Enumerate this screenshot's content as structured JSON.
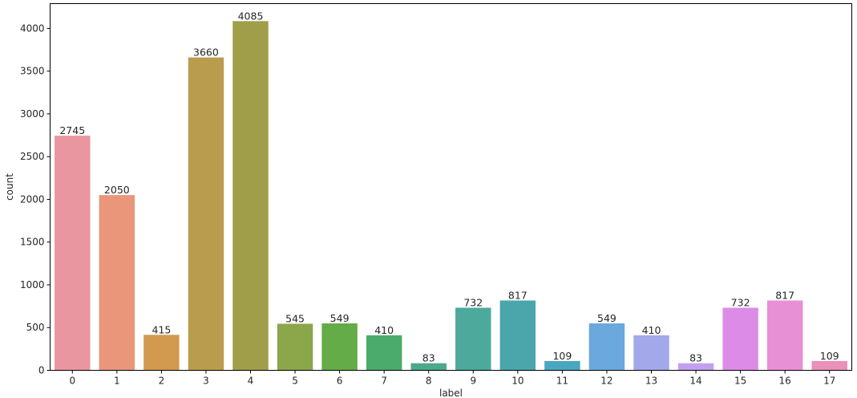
{
  "chart_data": {
    "type": "bar",
    "xlabel": "label",
    "ylabel": "count",
    "categories": [
      "0",
      "1",
      "2",
      "3",
      "4",
      "5",
      "6",
      "7",
      "8",
      "9",
      "10",
      "11",
      "12",
      "13",
      "14",
      "15",
      "16",
      "17"
    ],
    "values": [
      2745,
      2050,
      415,
      3660,
      4085,
      545,
      549,
      410,
      83,
      732,
      817,
      109,
      549,
      410,
      83,
      732,
      817,
      109
    ],
    "ylim": [
      0,
      4290
    ],
    "yticks": [
      0,
      500,
      1000,
      1500,
      2000,
      2500,
      3000,
      3500,
      4000
    ],
    "grid": false,
    "legend": "none",
    "colors": [
      "#ea96a0",
      "#e9967b",
      "#d19a4f",
      "#b99c4d",
      "#a09e48",
      "#8ca64a",
      "#63ac48",
      "#4bab6d",
      "#4ca88a",
      "#4ca99c",
      "#4aa6ab",
      "#4ba6c0",
      "#6aa8de",
      "#a3a8ea",
      "#c39ff0",
      "#dc8ce7",
      "#e890d6",
      "#ea91b8"
    ]
  }
}
